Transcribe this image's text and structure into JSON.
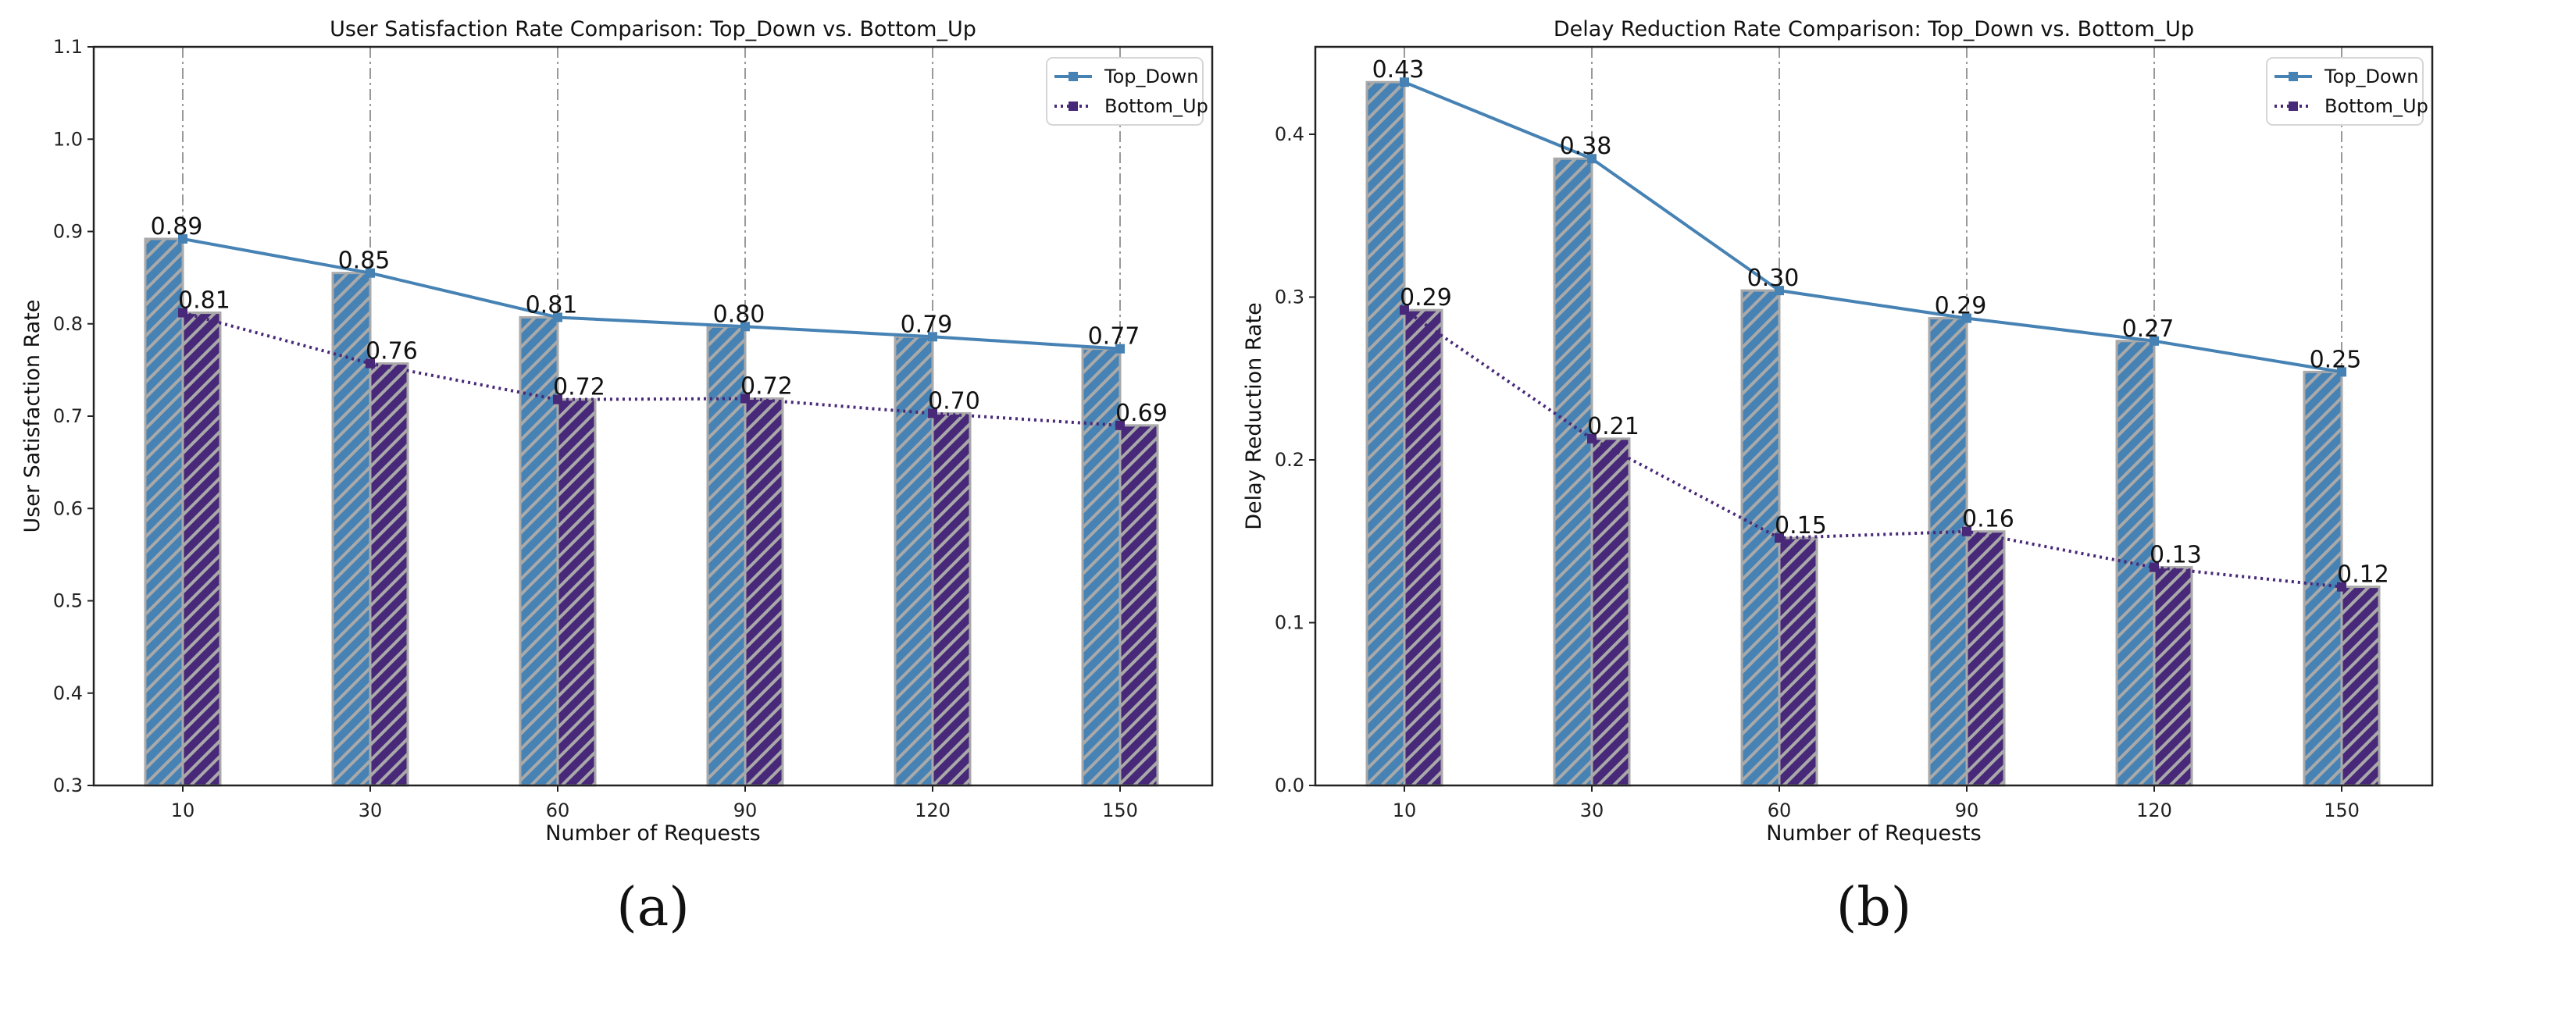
{
  "colors": {
    "top_down": "#4682b4",
    "bottom_up": "#482878",
    "hatch": "#a9a9a9"
  },
  "chart_data": [
    {
      "type": "bar",
      "title": "User Satisfaction Rate Comparison: Top_Down vs. Bottom_Up",
      "xlabel": "Number of Requests",
      "ylabel": "User Satisfaction Rate",
      "categories": [
        "10",
        "30",
        "60",
        "90",
        "120",
        "150"
      ],
      "ylim": [
        0.3,
        1.1
      ],
      "yticks": [
        0.3,
        0.4,
        0.5,
        0.6,
        0.7,
        0.8,
        0.9,
        1.0,
        1.1
      ],
      "ytick_labels": [
        "0.3",
        "0.4",
        "0.5",
        "0.6",
        "0.7",
        "0.8",
        "0.9",
        "1.0",
        "1.1"
      ],
      "legend": "top-right",
      "sublabel": "(a)",
      "series": [
        {
          "name": "Top_Down",
          "values": [
            0.892,
            0.855,
            0.807,
            0.797,
            0.786,
            0.773
          ],
          "labels": [
            "0.89",
            "0.85",
            "0.81",
            "0.80",
            "0.79",
            "0.77"
          ]
        },
        {
          "name": "Bottom_Up",
          "values": [
            0.812,
            0.757,
            0.718,
            0.719,
            0.703,
            0.69
          ],
          "labels": [
            "0.81",
            "0.76",
            "0.72",
            "0.72",
            "0.70",
            "0.69"
          ]
        }
      ]
    },
    {
      "type": "bar",
      "title": "Delay Reduction Rate Comparison: Top_Down vs. Bottom_Up",
      "xlabel": "Number of Requests",
      "ylabel": "Delay Reduction Rate",
      "categories": [
        "10",
        "30",
        "60",
        "90",
        "120",
        "150"
      ],
      "ylim": [
        0.0,
        0.4537
      ],
      "yticks": [
        0.0,
        0.1,
        0.2,
        0.3,
        0.4
      ],
      "ytick_labels": [
        "0.0",
        "0.1",
        "0.2",
        "0.3",
        "0.4"
      ],
      "legend": "top-right",
      "sublabel": "(b)",
      "series": [
        {
          "name": "Top_Down",
          "values": [
            0.432,
            0.385,
            0.304,
            0.287,
            0.273,
            0.254
          ],
          "labels": [
            "0.43",
            "0.38",
            "0.30",
            "0.29",
            "0.27",
            "0.25"
          ]
        },
        {
          "name": "Bottom_Up",
          "values": [
            0.292,
            0.213,
            0.152,
            0.156,
            0.134,
            0.122
          ],
          "labels": [
            "0.29",
            "0.21",
            "0.15",
            "0.16",
            "0.13",
            "0.12"
          ]
        }
      ]
    }
  ]
}
